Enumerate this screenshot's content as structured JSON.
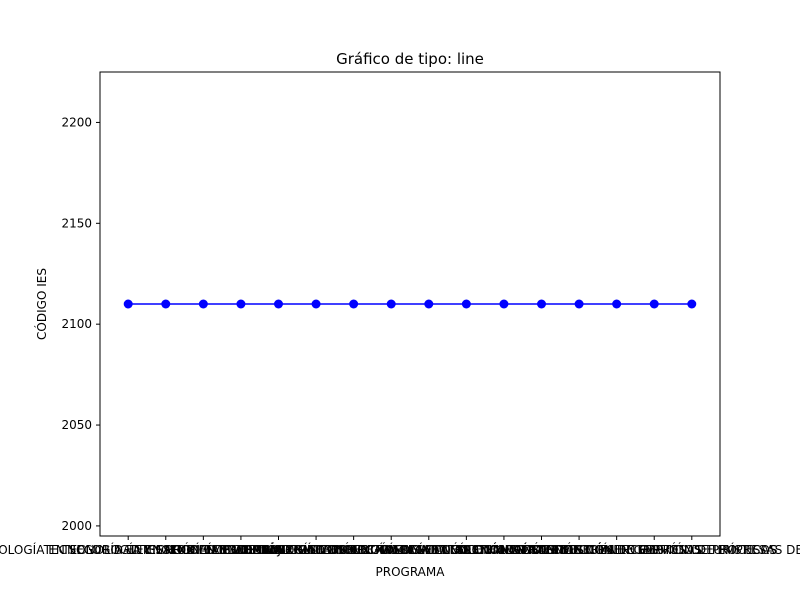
{
  "chart_data": {
    "type": "line",
    "title": "Gráfico de tipo: line",
    "xlabel": "PROGRAMA",
    "ylabel": "CÓDIGO IES",
    "ylim": [
      1995,
      2225
    ],
    "yticks": [
      2000,
      2050,
      2100,
      2150,
      2200
    ],
    "grid": false,
    "legend": "none",
    "color": "#0000ff",
    "categories": [
      "TECNOLOGÍA EN SEGURIDAD Y SALUD EN EL TRABAJO",
      "TECNOLOGÍA EN GESTIÓN EMPRESARIAL",
      "TECNOLOGÍA EN PROCESOS ADMINISTRATIVOS",
      "TECNOLOGÍA EN GESTIÓN CONTABLE",
      "TECNOLOGÍA EN DESARROLLO DE SOFTWARE",
      "TECNOLOGÍA EN GESTIÓN LOGÍSTICA",
      "TECNOLOGÍA EN MERCADEO Y VENTAS",
      "TECNOLOGÍA EN GESTIÓN DEL TALENTO HUMANO",
      "TECNOLOGÍA EN GESTIÓN FINANCIERA",
      "TECNOLOGÍA EN GESTIÓN AMBIENTAL",
      "TECNOLOGÍA EN GESTIÓN DE REDES",
      "TECNOLOGÍA EN GESTIÓN COMERCIAL",
      "TECNOLOGÍA EN GESTIÓN DE SERVICIOS",
      "TECNOLOGÍA EN GESTIÓN DE EMPRESAS TURÍSTICAS",
      "TECNOLOGÍA EN GESTIÓN DE PROCESOS",
      "TECNOLOGÍA EN GESTIÓN DE EMPRESAS DE SALUD"
    ],
    "values": [
      2110,
      2110,
      2110,
      2110,
      2110,
      2110,
      2110,
      2110,
      2110,
      2110,
      2110,
      2110,
      2110,
      2110,
      2110,
      2110
    ]
  }
}
